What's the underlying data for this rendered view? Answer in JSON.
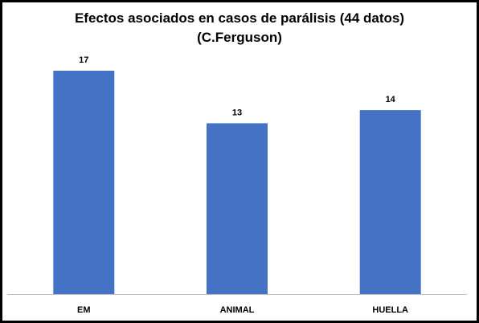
{
  "chart_data": {
    "type": "bar",
    "title": "Efectos asociados en casos de parálisis (44 datos)",
    "subtitle": "(C.Ferguson)",
    "categories": [
      "EM",
      "ANIMAL",
      "HUELLA"
    ],
    "values": [
      17,
      13,
      14
    ],
    "data_labels": [
      "17",
      "13",
      "14"
    ],
    "xlabel": "",
    "ylabel": "",
    "ylim": [
      0,
      17
    ],
    "grid": false,
    "legend": "none",
    "bar_color": "#4472C4"
  }
}
